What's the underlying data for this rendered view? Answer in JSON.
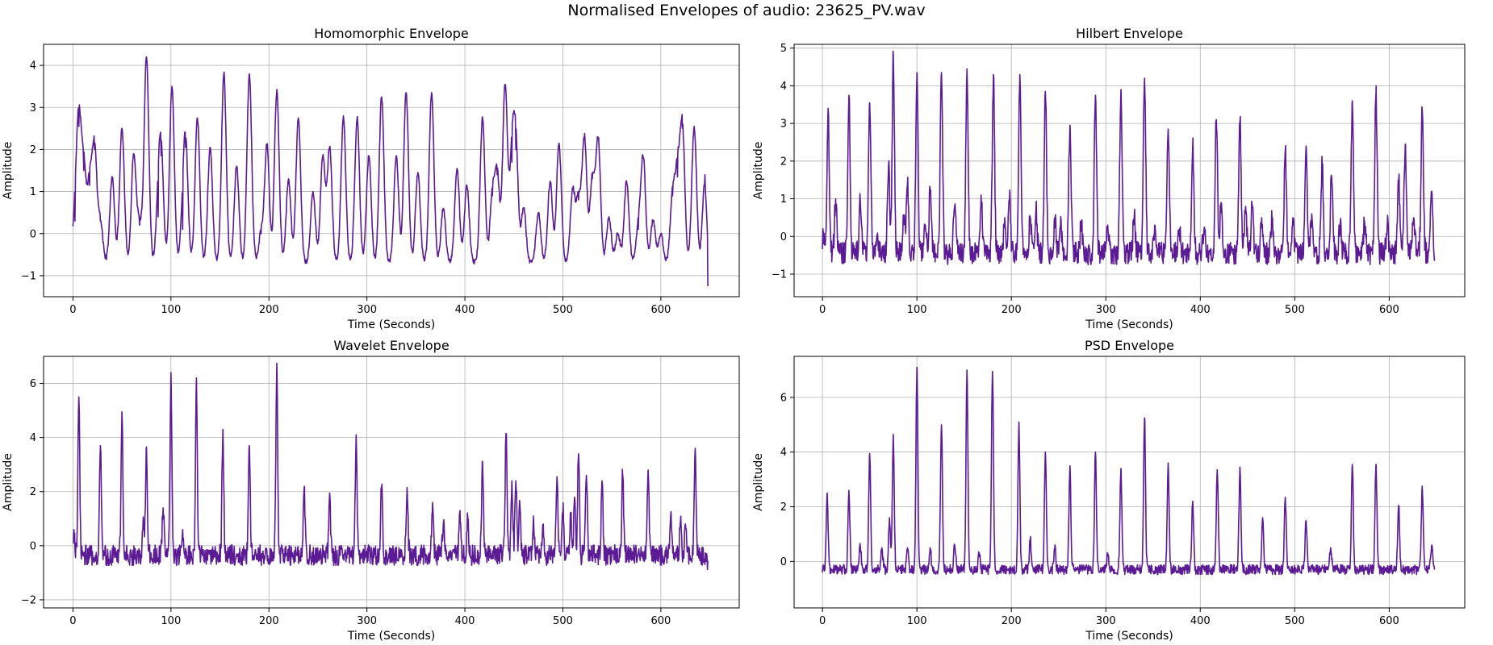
{
  "figure": {
    "suptitle": "Normalised Envelopes of audio: 23625_PV.wav",
    "line_color": "#5b1b94",
    "grid": true
  },
  "chart_data": [
    {
      "type": "line",
      "title": "Homomorphic Envelope",
      "xlabel": "Time (Seconds)",
      "ylabel": "Amplitude",
      "xlim": [
        -30,
        680
      ],
      "ylim": [
        -1.5,
        4.5
      ],
      "xticks": [
        0,
        100,
        200,
        300,
        400,
        500,
        600
      ],
      "yticks": [
        -1,
        0,
        1,
        2,
        3,
        4
      ],
      "ytick_labels": [
        "−1",
        "0",
        "1",
        "2",
        "3",
        "4"
      ],
      "base": -0.7,
      "noise": 0.06,
      "peak_width": 2.4,
      "x_start": 0,
      "x_end": 648,
      "peaks": [
        [
          2,
          0.3
        ],
        [
          6,
          2.55
        ],
        [
          11,
          1.5
        ],
        [
          17,
          1.15
        ],
        [
          22,
          2.0
        ],
        [
          28,
          0.3
        ],
        [
          40,
          1.35
        ],
        [
          50,
          2.5
        ],
        [
          62,
          1.9
        ],
        [
          68,
          0.2
        ],
        [
          75,
          4.2
        ],
        [
          87,
          0.4
        ],
        [
          90,
          1.85
        ],
        [
          101,
          3.5
        ],
        [
          112,
          0.1
        ],
        [
          115,
          2.05
        ],
        [
          127,
          2.75
        ],
        [
          140,
          2.05
        ],
        [
          154,
          3.8
        ],
        [
          167,
          1.6
        ],
        [
          180,
          3.8
        ],
        [
          192,
          0.0
        ],
        [
          198,
          2.1
        ],
        [
          208,
          3.4
        ],
        [
          220,
          1.3
        ],
        [
          230,
          2.75
        ],
        [
          245,
          1.0
        ],
        [
          255,
          1.85
        ],
        [
          262,
          2.05
        ],
        [
          276,
          2.8
        ],
        [
          290,
          2.75
        ],
        [
          302,
          1.85
        ],
        [
          315,
          3.25
        ],
        [
          330,
          1.85
        ],
        [
          340,
          3.35
        ],
        [
          352,
          1.45
        ],
        [
          366,
          3.35
        ],
        [
          378,
          0.6
        ],
        [
          392,
          1.55
        ],
        [
          402,
          1.15
        ],
        [
          418,
          2.75
        ],
        [
          428,
          0.9
        ],
        [
          433,
          1.4
        ],
        [
          441,
          3.55
        ],
        [
          448,
          1.7
        ],
        [
          452,
          2.0
        ],
        [
          460,
          0.6
        ],
        [
          475,
          0.5
        ],
        [
          487,
          1.25
        ],
        [
          496,
          2.15
        ],
        [
          510,
          1.05
        ],
        [
          516,
          0.8
        ],
        [
          522,
          2.3
        ],
        [
          530,
          1.3
        ],
        [
          536,
          2.25
        ],
        [
          547,
          0.4
        ],
        [
          556,
          0.0
        ],
        [
          565,
          1.25
        ],
        [
          577,
          0.1
        ],
        [
          582,
          1.8
        ],
        [
          592,
          0.3
        ],
        [
          600,
          0.0
        ],
        [
          612,
          0.9
        ],
        [
          617,
          1.35
        ],
        [
          622,
          2.5
        ],
        [
          634,
          2.55
        ],
        [
          645,
          1.4
        ],
        [
          648,
          -1.25
        ]
      ]
    },
    {
      "type": "line",
      "title": "Hilbert Envelope",
      "xlabel": "Time (Seconds)",
      "ylabel": "Amplitude",
      "xlim": [
        -30,
        680
      ],
      "ylim": [
        -1.6,
        5.1
      ],
      "xticks": [
        0,
        100,
        200,
        300,
        400,
        500,
        600
      ],
      "yticks": [
        -1,
        0,
        1,
        2,
        3,
        4,
        5
      ],
      "ytick_labels": [
        "−1",
        "0",
        "1",
        "2",
        "3",
        "4",
        "5"
      ],
      "base": -0.45,
      "noise": 0.3,
      "peak_width": 1.2,
      "x_start": 0,
      "x_end": 648,
      "peaks": [
        [
          1,
          0.1
        ],
        [
          6,
          3.4
        ],
        [
          14,
          1.0
        ],
        [
          28,
          3.75
        ],
        [
          40,
          1.0
        ],
        [
          50,
          3.55
        ],
        [
          58,
          0.0
        ],
        [
          70,
          1.9
        ],
        [
          75,
          4.85
        ],
        [
          86,
          0.5
        ],
        [
          90,
          1.4
        ],
        [
          100,
          4.35
        ],
        [
          109,
          0.3
        ],
        [
          114,
          1.2
        ],
        [
          126,
          4.35
        ],
        [
          140,
          0.8
        ],
        [
          153,
          4.45
        ],
        [
          168,
          1.1
        ],
        [
          181,
          4.3
        ],
        [
          193,
          0.5
        ],
        [
          198,
          1.0
        ],
        [
          209,
          4.3
        ],
        [
          220,
          0.5
        ],
        [
          226,
          0.7
        ],
        [
          236,
          3.85
        ],
        [
          246,
          0.5
        ],
        [
          252,
          0.3
        ],
        [
          262,
          2.95
        ],
        [
          274,
          0.4
        ],
        [
          289,
          3.75
        ],
        [
          302,
          0.3
        ],
        [
          316,
          3.9
        ],
        [
          330,
          0.5
        ],
        [
          341,
          4.2
        ],
        [
          352,
          0.3
        ],
        [
          366,
          2.85
        ],
        [
          378,
          0.2
        ],
        [
          392,
          2.4
        ],
        [
          404,
          0.2
        ],
        [
          417,
          3.1
        ],
        [
          422,
          0.9
        ],
        [
          442,
          3.05
        ],
        [
          448,
          0.8
        ],
        [
          455,
          0.8
        ],
        [
          465,
          0.5
        ],
        [
          476,
          0.5
        ],
        [
          490,
          2.3
        ],
        [
          498,
          0.5
        ],
        [
          512,
          2.4
        ],
        [
          518,
          0.6
        ],
        [
          529,
          1.95
        ],
        [
          539,
          1.6
        ],
        [
          548,
          0.3
        ],
        [
          561,
          3.6
        ],
        [
          574,
          0.4
        ],
        [
          586,
          3.8
        ],
        [
          598,
          0.3
        ],
        [
          610,
          1.5
        ],
        [
          617,
          2.45
        ],
        [
          626,
          0.5
        ],
        [
          635,
          3.35
        ],
        [
          645,
          1.2
        ],
        [
          648,
          -0.65
        ]
      ]
    },
    {
      "type": "line",
      "title": "Wavelet Envelope",
      "xlabel": "Time (Seconds)",
      "ylabel": "Amplitude",
      "xlim": [
        -30,
        680
      ],
      "ylim": [
        -2.3,
        7.0
      ],
      "xticks": [
        0,
        100,
        200,
        300,
        400,
        500,
        600
      ],
      "yticks": [
        -2,
        0,
        2,
        4,
        6
      ],
      "ytick_labels": [
        "−2",
        "0",
        "2",
        "4",
        "6"
      ],
      "base": -0.35,
      "noise": 0.38,
      "peak_width": 0.9,
      "x_start": 0,
      "x_end": 648,
      "peaks": [
        [
          1,
          0.6
        ],
        [
          6,
          5.5
        ],
        [
          28,
          3.7
        ],
        [
          50,
          4.95
        ],
        [
          72,
          0.9
        ],
        [
          75,
          3.65
        ],
        [
          92,
          1.4
        ],
        [
          100,
          6.4
        ],
        [
          112,
          0.6
        ],
        [
          126,
          6.2
        ],
        [
          153,
          4.3
        ],
        [
          180,
          3.7
        ],
        [
          208,
          6.75
        ],
        [
          236,
          2.15
        ],
        [
          262,
          1.95
        ],
        [
          289,
          4.1
        ],
        [
          315,
          2.15
        ],
        [
          341,
          2.15
        ],
        [
          367,
          1.6
        ],
        [
          378,
          0.8
        ],
        [
          395,
          1.3
        ],
        [
          403,
          1.0
        ],
        [
          418,
          3.1
        ],
        [
          442,
          4.15
        ],
        [
          448,
          2.4
        ],
        [
          452,
          2.4
        ],
        [
          456,
          1.6
        ],
        [
          470,
          1.1
        ],
        [
          480,
          0.8
        ],
        [
          494,
          2.55
        ],
        [
          500,
          1.3
        ],
        [
          508,
          1.2
        ],
        [
          512,
          1.8
        ],
        [
          516,
          3.4
        ],
        [
          524,
          2.6
        ],
        [
          540,
          2.4
        ],
        [
          561,
          2.65
        ],
        [
          587,
          2.8
        ],
        [
          610,
          1.1
        ],
        [
          620,
          0.9
        ],
        [
          625,
          0.8
        ],
        [
          635,
          3.6
        ],
        [
          648,
          -0.55
        ]
      ]
    },
    {
      "type": "line",
      "title": "PSD Envelope",
      "xlabel": "Time (Seconds)",
      "ylabel": "Amplitude",
      "xlim": [
        -30,
        680
      ],
      "ylim": [
        -1.7,
        7.5
      ],
      "xticks": [
        0,
        100,
        200,
        300,
        400,
        500,
        600
      ],
      "yticks": [
        0,
        2,
        4,
        6
      ],
      "ytick_labels": [
        "0",
        "2",
        "4",
        "6"
      ],
      "base": -0.3,
      "noise": 0.18,
      "peak_width": 1.0,
      "x_start": 0,
      "x_end": 648,
      "peaks": [
        [
          5,
          2.5
        ],
        [
          28,
          2.6
        ],
        [
          40,
          0.6
        ],
        [
          50,
          3.95
        ],
        [
          63,
          0.5
        ],
        [
          71,
          1.6
        ],
        [
          75,
          4.65
        ],
        [
          90,
          0.5
        ],
        [
          100,
          7.1
        ],
        [
          114,
          0.5
        ],
        [
          126,
          5.0
        ],
        [
          140,
          0.6
        ],
        [
          153,
          7.0
        ],
        [
          166,
          0.3
        ],
        [
          180,
          6.95
        ],
        [
          208,
          5.1
        ],
        [
          220,
          0.8
        ],
        [
          236,
          4.0
        ],
        [
          246,
          0.5
        ],
        [
          262,
          3.5
        ],
        [
          289,
          4.0
        ],
        [
          302,
          0.3
        ],
        [
          316,
          3.4
        ],
        [
          341,
          5.25
        ],
        [
          366,
          3.6
        ],
        [
          392,
          2.2
        ],
        [
          418,
          3.35
        ],
        [
          442,
          3.45
        ],
        [
          466,
          1.6
        ],
        [
          490,
          2.35
        ],
        [
          512,
          1.5
        ],
        [
          538,
          0.5
        ],
        [
          561,
          3.55
        ],
        [
          586,
          3.55
        ],
        [
          610,
          2.05
        ],
        [
          635,
          2.75
        ],
        [
          645,
          0.6
        ],
        [
          648,
          -0.3
        ]
      ]
    }
  ]
}
